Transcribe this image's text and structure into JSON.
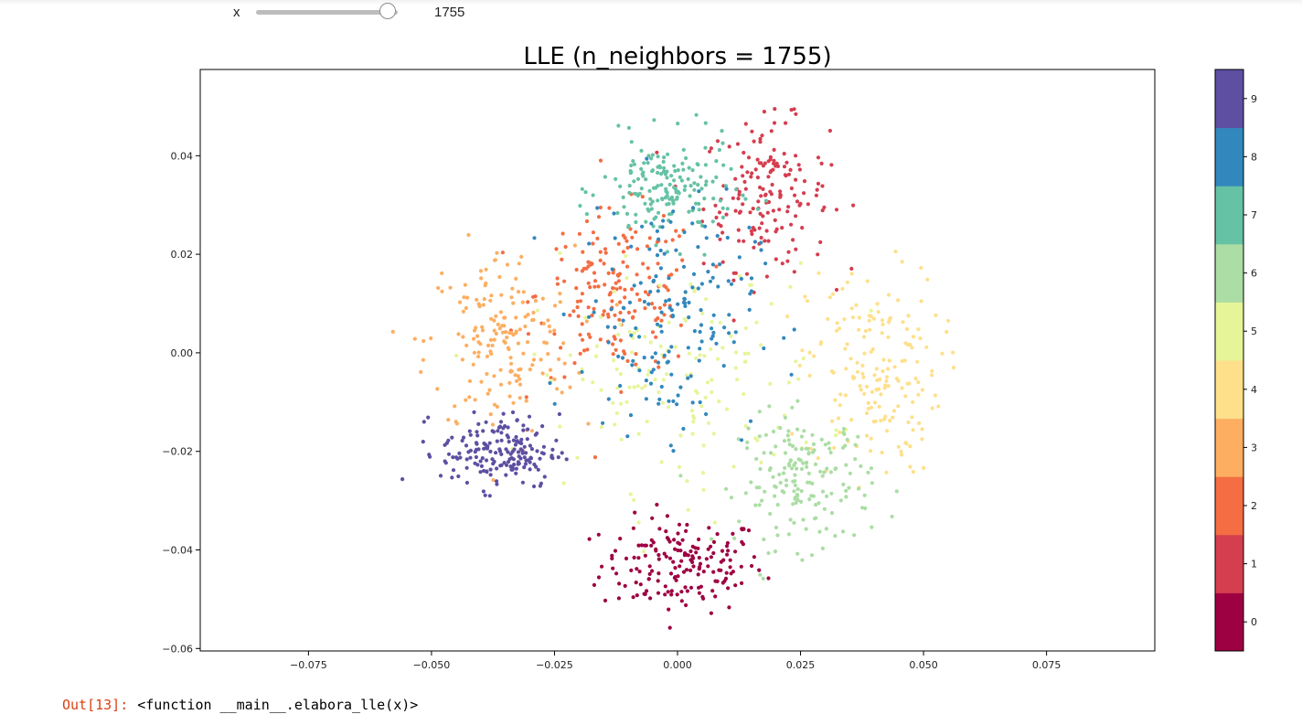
{
  "widget": {
    "label": "x",
    "slider_value": "1755",
    "slider_fraction": 0.93
  },
  "output": {
    "prompt": "Out[13]:",
    "text": "<function __main__.elabora_lle(x)>"
  },
  "chart_data": {
    "type": "scatter",
    "title": "LLE (n_neighbors = 1755)",
    "xlim": [
      -0.097,
      0.097
    ],
    "ylim": [
      -0.0605,
      0.0575
    ],
    "xticks": [
      -0.075,
      -0.05,
      -0.025,
      0.0,
      0.025,
      0.05,
      0.075
    ],
    "xtick_labels": [
      "−0.075",
      "−0.050",
      "−0.025",
      "0.000",
      "0.025",
      "0.050",
      "0.075"
    ],
    "yticks": [
      -0.06,
      -0.04,
      -0.02,
      0.0,
      0.02,
      0.04
    ],
    "ytick_labels": [
      "−0.06",
      "−0.04",
      "−0.02",
      "0.00",
      "0.02",
      "0.04"
    ],
    "colormap": "Spectral",
    "colorbar": {
      "labels": [
        "0",
        "1",
        "2",
        "3",
        "4",
        "5",
        "6",
        "7",
        "8",
        "9"
      ],
      "colors": [
        "#9e0142",
        "#d53e4f",
        "#f46d43",
        "#fdae61",
        "#fee08b",
        "#e6f598",
        "#abdda4",
        "#66c2a5",
        "#3288bd",
        "#5e4fa2"
      ]
    },
    "clusters": [
      {
        "label": "0",
        "center": [
          0.001,
          -0.043
        ],
        "spread": [
          0.011,
          0.0065
        ],
        "count": 175
      },
      {
        "label": "1",
        "center": [
          0.018,
          0.032
        ],
        "spread": [
          0.0085,
          0.01
        ],
        "count": 170
      },
      {
        "label": "2",
        "center": [
          -0.012,
          0.012
        ],
        "spread": [
          0.011,
          0.011
        ],
        "count": 180
      },
      {
        "label": "3",
        "center": [
          -0.036,
          0.002
        ],
        "spread": [
          0.01,
          0.013
        ],
        "count": 175
      },
      {
        "label": "4",
        "center": [
          0.04,
          -0.004
        ],
        "spread": [
          0.009,
          0.014
        ],
        "count": 180
      },
      {
        "label": "5",
        "center": [
          0.0,
          -0.005
        ],
        "spread": [
          0.02,
          0.015
        ],
        "count": 150
      },
      {
        "label": "6",
        "center": [
          0.026,
          -0.026
        ],
        "spread": [
          0.009,
          0.009
        ],
        "count": 175
      },
      {
        "label": "7",
        "center": [
          -0.002,
          0.033
        ],
        "spread": [
          0.009,
          0.007
        ],
        "count": 175
      },
      {
        "label": "8",
        "center": [
          -0.002,
          0.008
        ],
        "spread": [
          0.012,
          0.016
        ],
        "count": 170
      },
      {
        "label": "9",
        "center": [
          -0.036,
          -0.02
        ],
        "spread": [
          0.008,
          0.005
        ],
        "count": 180
      }
    ]
  }
}
